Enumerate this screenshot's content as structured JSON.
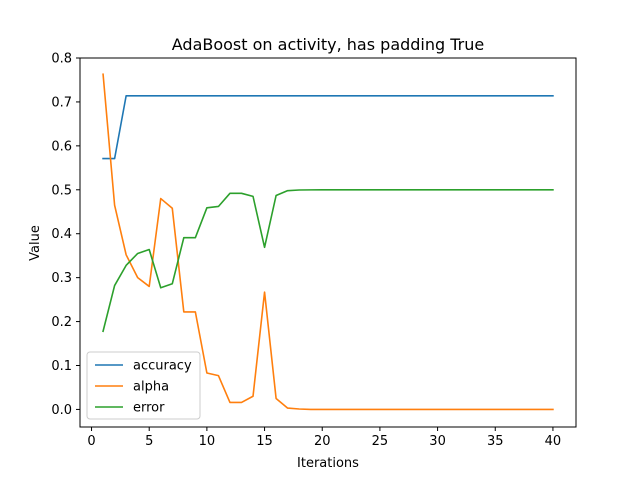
{
  "chart_data": {
    "type": "line",
    "title": "AdaBoost on activity, has padding True",
    "xlabel": "Iterations",
    "ylabel": "Value",
    "xlim": [
      -1,
      42
    ],
    "ylim": [
      -0.04,
      0.8
    ],
    "xticks": [
      0,
      5,
      10,
      15,
      20,
      25,
      30,
      35,
      40
    ],
    "yticks": [
      0.0,
      0.1,
      0.2,
      0.3,
      0.4,
      0.5,
      0.6,
      0.7,
      0.8
    ],
    "xtick_labels": [
      "0",
      "5",
      "10",
      "15",
      "20",
      "25",
      "30",
      "35",
      "40"
    ],
    "ytick_labels": [
      "0.0",
      "0.1",
      "0.2",
      "0.3",
      "0.4",
      "0.5",
      "0.6",
      "0.7",
      "0.8"
    ],
    "grid": false,
    "legend_position": "lower-left",
    "x": [
      1,
      2,
      3,
      4,
      5,
      6,
      7,
      8,
      9,
      10,
      11,
      12,
      13,
      14,
      15,
      16,
      17,
      18,
      19,
      20,
      21,
      22,
      23,
      24,
      25,
      26,
      27,
      28,
      29,
      30,
      31,
      32,
      33,
      34,
      35,
      36,
      37,
      38,
      39,
      40
    ],
    "series": [
      {
        "name": "accuracy",
        "color": "#1f77b4",
        "values": [
          0.571,
          0.571,
          0.714,
          0.714,
          0.714,
          0.714,
          0.714,
          0.714,
          0.714,
          0.714,
          0.714,
          0.714,
          0.714,
          0.714,
          0.714,
          0.714,
          0.714,
          0.714,
          0.714,
          0.714,
          0.714,
          0.714,
          0.714,
          0.714,
          0.714,
          0.714,
          0.714,
          0.714,
          0.714,
          0.714,
          0.714,
          0.714,
          0.714,
          0.714,
          0.714,
          0.714,
          0.714,
          0.714,
          0.714,
          0.714
        ]
      },
      {
        "name": "alpha",
        "color": "#ff7f0e",
        "values": [
          0.763,
          0.465,
          0.352,
          0.3,
          0.28,
          0.48,
          0.458,
          0.222,
          0.222,
          0.083,
          0.077,
          0.016,
          0.016,
          0.03,
          0.267,
          0.025,
          0.003,
          0.001,
          0.0,
          0.0,
          0.0,
          0.0,
          0.0,
          0.0,
          0.0,
          0.0,
          0.0,
          0.0,
          0.0,
          0.0,
          0.0,
          0.0,
          0.0,
          0.0,
          0.0,
          0.0,
          0.0,
          0.0,
          0.0,
          0.0
        ]
      },
      {
        "name": "error",
        "color": "#2ca02c",
        "values": [
          0.178,
          0.282,
          0.328,
          0.355,
          0.364,
          0.277,
          0.286,
          0.391,
          0.391,
          0.459,
          0.462,
          0.492,
          0.492,
          0.485,
          0.369,
          0.487,
          0.498,
          0.4995,
          0.4998,
          0.5,
          0.5,
          0.5,
          0.5,
          0.5,
          0.5,
          0.5,
          0.5,
          0.5,
          0.5,
          0.5,
          0.5,
          0.5,
          0.5,
          0.5,
          0.5,
          0.5,
          0.5,
          0.5,
          0.5,
          0.5
        ]
      }
    ]
  }
}
